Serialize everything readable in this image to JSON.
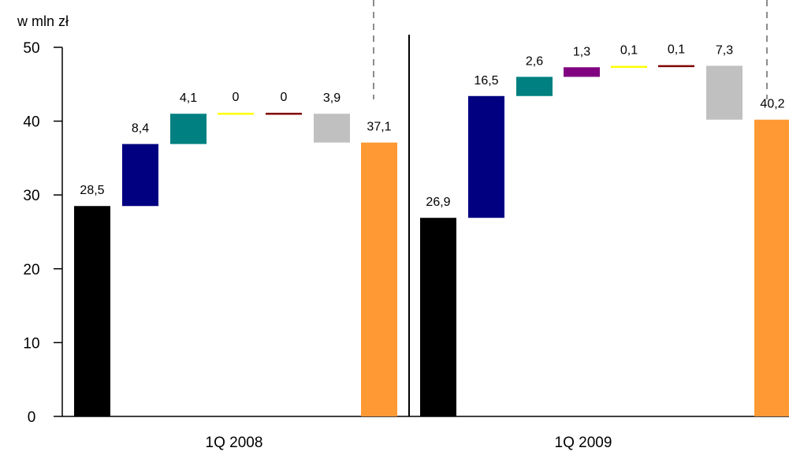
{
  "chart_data": {
    "type": "bar",
    "subtype": "waterfall",
    "ylabel": "w mln zł",
    "ylim": [
      0,
      50
    ],
    "yticks": [
      0,
      10,
      20,
      30,
      40,
      50
    ],
    "yticks_labels": [
      "0",
      "10",
      "20",
      "30",
      "40",
      "50"
    ],
    "grid": false,
    "legend": "none",
    "groups": [
      {
        "category": "1Q 2008",
        "bars": [
          {
            "start": 0,
            "end": 28.5,
            "label": "28,5",
            "color": "#000000"
          },
          {
            "start": 28.5,
            "end": 36.9,
            "label": "8,4",
            "color": "#000080"
          },
          {
            "start": 36.9,
            "end": 41.0,
            "label": "4,1",
            "color": "#008080"
          },
          {
            "start": 41.0,
            "end": 41.0,
            "label": "0",
            "color": "#ffff00"
          },
          {
            "start": 41.0,
            "end": 41.0,
            "label": "0",
            "color": "#800000"
          },
          {
            "start": 41.0,
            "end": 37.1,
            "label": "3,9",
            "color": "#c0c0c0"
          },
          {
            "start": 0,
            "end": 37.1,
            "label": "37,1",
            "color": "#ff9933"
          }
        ]
      },
      {
        "category": "1Q 2009",
        "bars": [
          {
            "start": 0,
            "end": 26.9,
            "label": "26,9",
            "color": "#000000"
          },
          {
            "start": 26.9,
            "end": 43.4,
            "label": "16,5",
            "color": "#000080"
          },
          {
            "start": 43.4,
            "end": 46.0,
            "label": "2,6",
            "color": "#008080"
          },
          {
            "start": 46.0,
            "end": 47.3,
            "label": "1,3",
            "color": "#800080"
          },
          {
            "start": 47.3,
            "end": 47.4,
            "label": "0,1",
            "color": "#ffff00"
          },
          {
            "start": 47.4,
            "end": 47.5,
            "label": "0,1",
            "color": "#800000"
          },
          {
            "start": 47.5,
            "end": 40.2,
            "label": "7,3",
            "color": "#c0c0c0"
          },
          {
            "start": 0,
            "end": 40.2,
            "label": "40,2",
            "color": "#ff9933"
          }
        ]
      }
    ]
  }
}
